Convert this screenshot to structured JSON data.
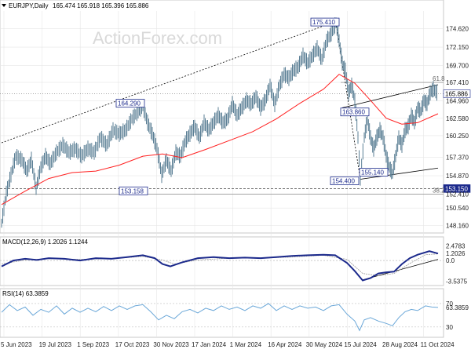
{
  "header": {
    "symbol": "EURJPY,Daily",
    "ohlc": "165.474 165.918 165.396 165.886",
    "watermark": "ActionForex.com"
  },
  "macd": {
    "label": "MACD(12,26,9) 1.2026 1.1244"
  },
  "rsi": {
    "label": "RSI(14) 63.3859"
  },
  "colors": {
    "price": "#5b7f95",
    "ema": "#ff2020",
    "macd": "#1c2a8c",
    "signal": "#9a9a9a",
    "rsi": "#6aa7d8",
    "trend": "#000000",
    "box_border": "#1c2a8c",
    "level_box": "#1c2a8c",
    "grid": "#e6e6e6"
  },
  "chart_data": [
    {
      "type": "candlestick",
      "panel": "price",
      "x_labels": [
        "5 Jun 2023",
        "19 Jul 2023",
        "1 Sep 2023",
        "17 Oct 2023",
        "30 Nov 2023",
        "17 Jan 2024",
        "1 Mar 2024",
        "16 Apr 2024",
        "30 May 2024",
        "15 Jul 2024",
        "28 Aug 2024",
        "11 Oct 2024"
      ],
      "y_ticks": [
        "174.620",
        "172.150",
        "169.700",
        "167.410",
        "164.960",
        "162.580",
        "160.250",
        "157.370",
        "154.870",
        "152.410",
        "150.540",
        "148.160"
      ],
      "ylim": [
        147.5,
        177.0
      ],
      "current_price": "165.886",
      "price_path": [
        [
          0,
          148.5
        ],
        [
          6,
          152.5
        ],
        [
          12,
          155
        ],
        [
          18,
          157.5
        ],
        [
          26,
          157
        ],
        [
          32,
          155.5
        ],
        [
          38,
          157
        ],
        [
          44,
          153.2
        ],
        [
          50,
          156
        ],
        [
          56,
          157.5
        ],
        [
          62,
          156.5
        ],
        [
          70,
          158
        ],
        [
          78,
          159
        ],
        [
          86,
          158
        ],
        [
          94,
          158.5
        ],
        [
          102,
          157.5
        ],
        [
          110,
          158.5
        ],
        [
          118,
          158
        ],
        [
          126,
          160
        ],
        [
          134,
          159
        ],
        [
          142,
          161
        ],
        [
          150,
          160.5
        ],
        [
          158,
          161
        ],
        [
          166,
          162.5
        ],
        [
          174,
          163.5
        ],
        [
          180,
          164.3
        ],
        [
          186,
          162
        ],
        [
          192,
          160.5
        ],
        [
          198,
          158.5
        ],
        [
          204,
          155
        ],
        [
          210,
          157
        ],
        [
          216,
          155.5
        ],
        [
          222,
          158
        ],
        [
          228,
          157.5
        ],
        [
          234,
          159.5
        ],
        [
          240,
          160.5
        ],
        [
          246,
          161.5
        ],
        [
          252,
          160
        ],
        [
          258,
          162
        ],
        [
          264,
          161
        ],
        [
          270,
          162
        ],
        [
          276,
          163
        ],
        [
          282,
          162
        ],
        [
          288,
          162.5
        ],
        [
          294,
          164.5
        ],
        [
          300,
          163
        ],
        [
          306,
          164
        ],
        [
          312,
          165
        ],
        [
          318,
          164.5
        ],
        [
          324,
          165.5
        ],
        [
          330,
          164
        ],
        [
          336,
          165
        ],
        [
          342,
          167
        ],
        [
          348,
          164.5
        ],
        [
          354,
          167
        ],
        [
          360,
          168.5
        ],
        [
          366,
          168
        ],
        [
          372,
          169
        ],
        [
          378,
          169.5
        ],
        [
          384,
          171
        ],
        [
          390,
          170
        ],
        [
          396,
          171
        ],
        [
          402,
          172
        ],
        [
          408,
          170.5
        ],
        [
          414,
          173
        ],
        [
          420,
          174
        ],
        [
          426,
          175.4
        ],
        [
          430,
          173
        ],
        [
          434,
          170
        ],
        [
          438,
          169
        ],
        [
          442,
          166
        ],
        [
          446,
          167
        ],
        [
          450,
          165
        ],
        [
          454,
          160
        ],
        [
          457,
          154.4
        ],
        [
          462,
          160
        ],
        [
          466,
          162.5
        ],
        [
          470,
          160
        ],
        [
          474,
          158.5
        ],
        [
          478,
          160
        ],
        [
          482,
          161
        ],
        [
          486,
          160
        ],
        [
          490,
          157.5
        ],
        [
          494,
          156
        ],
        [
          498,
          155.14
        ],
        [
          502,
          157.5
        ],
        [
          506,
          160
        ],
        [
          510,
          159
        ],
        [
          514,
          161
        ],
        [
          518,
          161.5
        ],
        [
          522,
          163
        ],
        [
          526,
          162
        ],
        [
          530,
          164
        ],
        [
          534,
          163.5
        ],
        [
          538,
          165
        ],
        [
          542,
          164.5
        ],
        [
          546,
          166
        ],
        [
          550,
          166.5
        ],
        [
          556,
          165.886
        ]
      ],
      "ema_path": [
        [
          0,
          151
        ],
        [
          30,
          152.8
        ],
        [
          60,
          154.5
        ],
        [
          90,
          155.3
        ],
        [
          120,
          155.5
        ],
        [
          150,
          156.3
        ],
        [
          180,
          157.5
        ],
        [
          205,
          157.8
        ],
        [
          230,
          157.3
        ],
        [
          260,
          158.4
        ],
        [
          290,
          159.6
        ],
        [
          320,
          160.8
        ],
        [
          350,
          162.5
        ],
        [
          380,
          164.6
        ],
        [
          410,
          166.5
        ],
        [
          430,
          168.5
        ],
        [
          450,
          167.3
        ],
        [
          470,
          165
        ],
        [
          490,
          162.6
        ],
        [
          510,
          161.8
        ],
        [
          530,
          162
        ],
        [
          556,
          163.2
        ]
      ],
      "levels": [
        {
          "label": "175.410",
          "value": 175.41
        },
        {
          "label": "164.290",
          "value": 164.29
        },
        {
          "label": "163.860",
          "value": 163.86
        },
        {
          "label": "154.400",
          "value": 154.4
        },
        {
          "label": "155.140",
          "value": 155.14
        },
        {
          "label": "153.150",
          "value": 153.15
        },
        {
          "label": "153.158",
          "value": 153.158
        }
      ],
      "fib_labels": [
        {
          "label": "61.8",
          "value": 167.41
        },
        {
          "label": "38.2",
          "value": 152.41
        }
      ],
      "right_tags": [
        {
          "label": "165.886",
          "value": 165.886
        },
        {
          "label": "153.150",
          "value": 153.15
        }
      ]
    },
    {
      "type": "line",
      "panel": "macd",
      "y_ticks": [
        "2.4783",
        "1.2026",
        "0.0",
        "-3.5375"
      ],
      "ylim": [
        -4.0,
        3.5
      ],
      "macd_path": [
        [
          0,
          -1.0
        ],
        [
          15,
          0.0
        ],
        [
          30,
          0.3
        ],
        [
          45,
          0.1
        ],
        [
          60,
          0.4
        ],
        [
          80,
          0.3
        ],
        [
          100,
          0.0
        ],
        [
          120,
          0.4
        ],
        [
          140,
          0.3
        ],
        [
          160,
          0.6
        ],
        [
          180,
          0.9
        ],
        [
          195,
          0.4
        ],
        [
          205,
          -0.6
        ],
        [
          215,
          -1.0
        ],
        [
          230,
          -0.3
        ],
        [
          250,
          0.4
        ],
        [
          270,
          0.6
        ],
        [
          290,
          0.4
        ],
        [
          310,
          0.5
        ],
        [
          330,
          0.4
        ],
        [
          350,
          0.6
        ],
        [
          370,
          0.8
        ],
        [
          390,
          0.9
        ],
        [
          410,
          1.0
        ],
        [
          425,
          0.9
        ],
        [
          440,
          -0.4
        ],
        [
          450,
          -1.8
        ],
        [
          460,
          -3.4
        ],
        [
          470,
          -3.0
        ],
        [
          480,
          -2.2
        ],
        [
          490,
          -2.0
        ],
        [
          500,
          -1.9
        ],
        [
          510,
          -0.6
        ],
        [
          520,
          0.4
        ],
        [
          530,
          1.0
        ],
        [
          545,
          1.6
        ],
        [
          556,
          1.2026
        ]
      ],
      "signal_path": [
        [
          0,
          -0.6
        ],
        [
          30,
          0.1
        ],
        [
          60,
          0.3
        ],
        [
          100,
          0.2
        ],
        [
          140,
          0.3
        ],
        [
          180,
          0.7
        ],
        [
          205,
          0.1
        ],
        [
          220,
          -0.6
        ],
        [
          250,
          0.1
        ],
        [
          290,
          0.4
        ],
        [
          330,
          0.4
        ],
        [
          370,
          0.6
        ],
        [
          410,
          0.9
        ],
        [
          440,
          0.2
        ],
        [
          460,
          -2.2
        ],
        [
          480,
          -2.6
        ],
        [
          500,
          -2.2
        ],
        [
          520,
          -0.5
        ],
        [
          540,
          1.0
        ],
        [
          556,
          1.1244
        ]
      ]
    },
    {
      "type": "line",
      "panel": "rsi",
      "y_ticks": [
        "70",
        "63.3859",
        "30"
      ],
      "ylim": [
        15,
        90
      ],
      "rsi_path": [
        [
          0,
          55
        ],
        [
          10,
          68
        ],
        [
          20,
          58
        ],
        [
          30,
          64
        ],
        [
          40,
          50
        ],
        [
          50,
          60
        ],
        [
          60,
          55
        ],
        [
          70,
          66
        ],
        [
          80,
          52
        ],
        [
          90,
          62
        ],
        [
          100,
          55
        ],
        [
          110,
          62
        ],
        [
          120,
          56
        ],
        [
          130,
          65
        ],
        [
          140,
          58
        ],
        [
          150,
          66
        ],
        [
          160,
          60
        ],
        [
          170,
          66
        ],
        [
          180,
          68
        ],
        [
          190,
          56
        ],
        [
          200,
          42
        ],
        [
          210,
          50
        ],
        [
          220,
          44
        ],
        [
          230,
          56
        ],
        [
          240,
          60
        ],
        [
          250,
          54
        ],
        [
          260,
          62
        ],
        [
          270,
          58
        ],
        [
          280,
          66
        ],
        [
          290,
          60
        ],
        [
          300,
          64
        ],
        [
          310,
          58
        ],
        [
          320,
          66
        ],
        [
          330,
          62
        ],
        [
          340,
          70
        ],
        [
          350,
          58
        ],
        [
          360,
          66
        ],
        [
          370,
          60
        ],
        [
          380,
          66
        ],
        [
          390,
          62
        ],
        [
          400,
          64
        ],
        [
          410,
          58
        ],
        [
          420,
          66
        ],
        [
          430,
          68
        ],
        [
          440,
          52
        ],
        [
          450,
          40
        ],
        [
          456,
          24
        ],
        [
          462,
          42
        ],
        [
          470,
          46
        ],
        [
          480,
          40
        ],
        [
          490,
          36
        ],
        [
          498,
          32
        ],
        [
          506,
          46
        ],
        [
          514,
          56
        ],
        [
          522,
          60
        ],
        [
          530,
          58
        ],
        [
          540,
          66
        ],
        [
          548,
          64
        ],
        [
          556,
          63.3859
        ]
      ]
    }
  ]
}
